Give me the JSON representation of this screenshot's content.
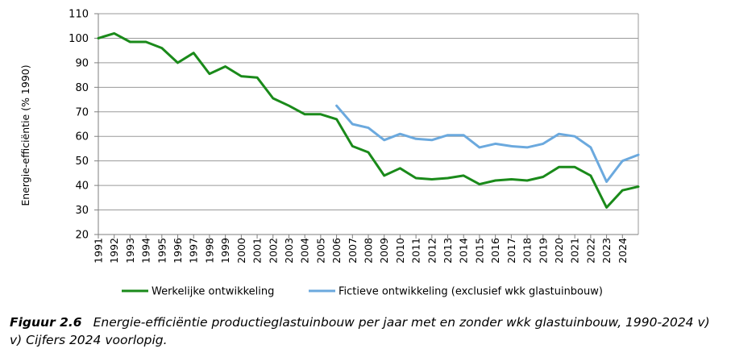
{
  "chart_data": {
    "type": "line",
    "title": "",
    "xlabel": "",
    "ylabel": "Energie-efficiëntie (% 1990)",
    "ylim": [
      20,
      110
    ],
    "yticks": [
      20,
      30,
      40,
      50,
      60,
      70,
      80,
      90,
      100,
      110
    ],
    "grid": true,
    "legend_position": "bottom",
    "x": [
      "1991",
      "1992",
      "1993",
      "1994",
      "1995",
      "1996",
      "1997",
      "1998",
      "1999",
      "2000",
      "2001",
      "2002",
      "2003",
      "2004",
      "2005",
      "2006",
      "2007",
      "2008",
      "2009",
      "2010",
      "2011",
      "2012",
      "2013",
      "2014",
      "2015",
      "2016",
      "2017",
      "2018",
      "2019",
      "2020",
      "2021",
      "2022",
      "2023",
      "2024"
    ],
    "series": [
      {
        "name": "Werkelijke ontwikkeling",
        "color": "#1a8a1a",
        "x": [
          1990,
          1991,
          1992,
          1993,
          1994,
          1995,
          1996,
          1997,
          1998,
          1999,
          2000,
          2001,
          2002,
          2003,
          2004,
          2005,
          2006,
          2007,
          2008,
          2009,
          2010,
          2011,
          2012,
          2013,
          2014,
          2015,
          2016,
          2017,
          2018,
          2019,
          2020,
          2021,
          2022,
          2023,
          2024
        ],
        "values": [
          100,
          102,
          98.5,
          98.5,
          96,
          90,
          94,
          85.5,
          88.5,
          84.5,
          84,
          75.5,
          72.5,
          69,
          69,
          67,
          56,
          53.5,
          44,
          47,
          43,
          42.5,
          43,
          44,
          40.5,
          42,
          42.5,
          42,
          43.5,
          47.5,
          47.5,
          44,
          31,
          38,
          39.5
        ]
      },
      {
        "name": "Fictieve ontwikkeling (exclusief wkk glastuinbouw)",
        "color": "#6ba9de",
        "x": [
          2005,
          2006,
          2007,
          2008,
          2009,
          2010,
          2011,
          2012,
          2013,
          2014,
          2015,
          2016,
          2017,
          2018,
          2019,
          2020,
          2021,
          2022,
          2023,
          2024
        ],
        "values": [
          72.5,
          65,
          63.5,
          58.5,
          61,
          59,
          58.5,
          60.5,
          60.5,
          55.5,
          57,
          56,
          55.5,
          57,
          61,
          60,
          55.5,
          41.5,
          50,
          52.5
        ]
      }
    ]
  },
  "caption": {
    "label": "Figuur 2.6",
    "text": "Energie-efficiëntie productieglastuinbouw per jaar met en zonder wkk glastuinbouw, 1990-2024 v)",
    "note": "v) Cijfers 2024 voorlopig."
  }
}
